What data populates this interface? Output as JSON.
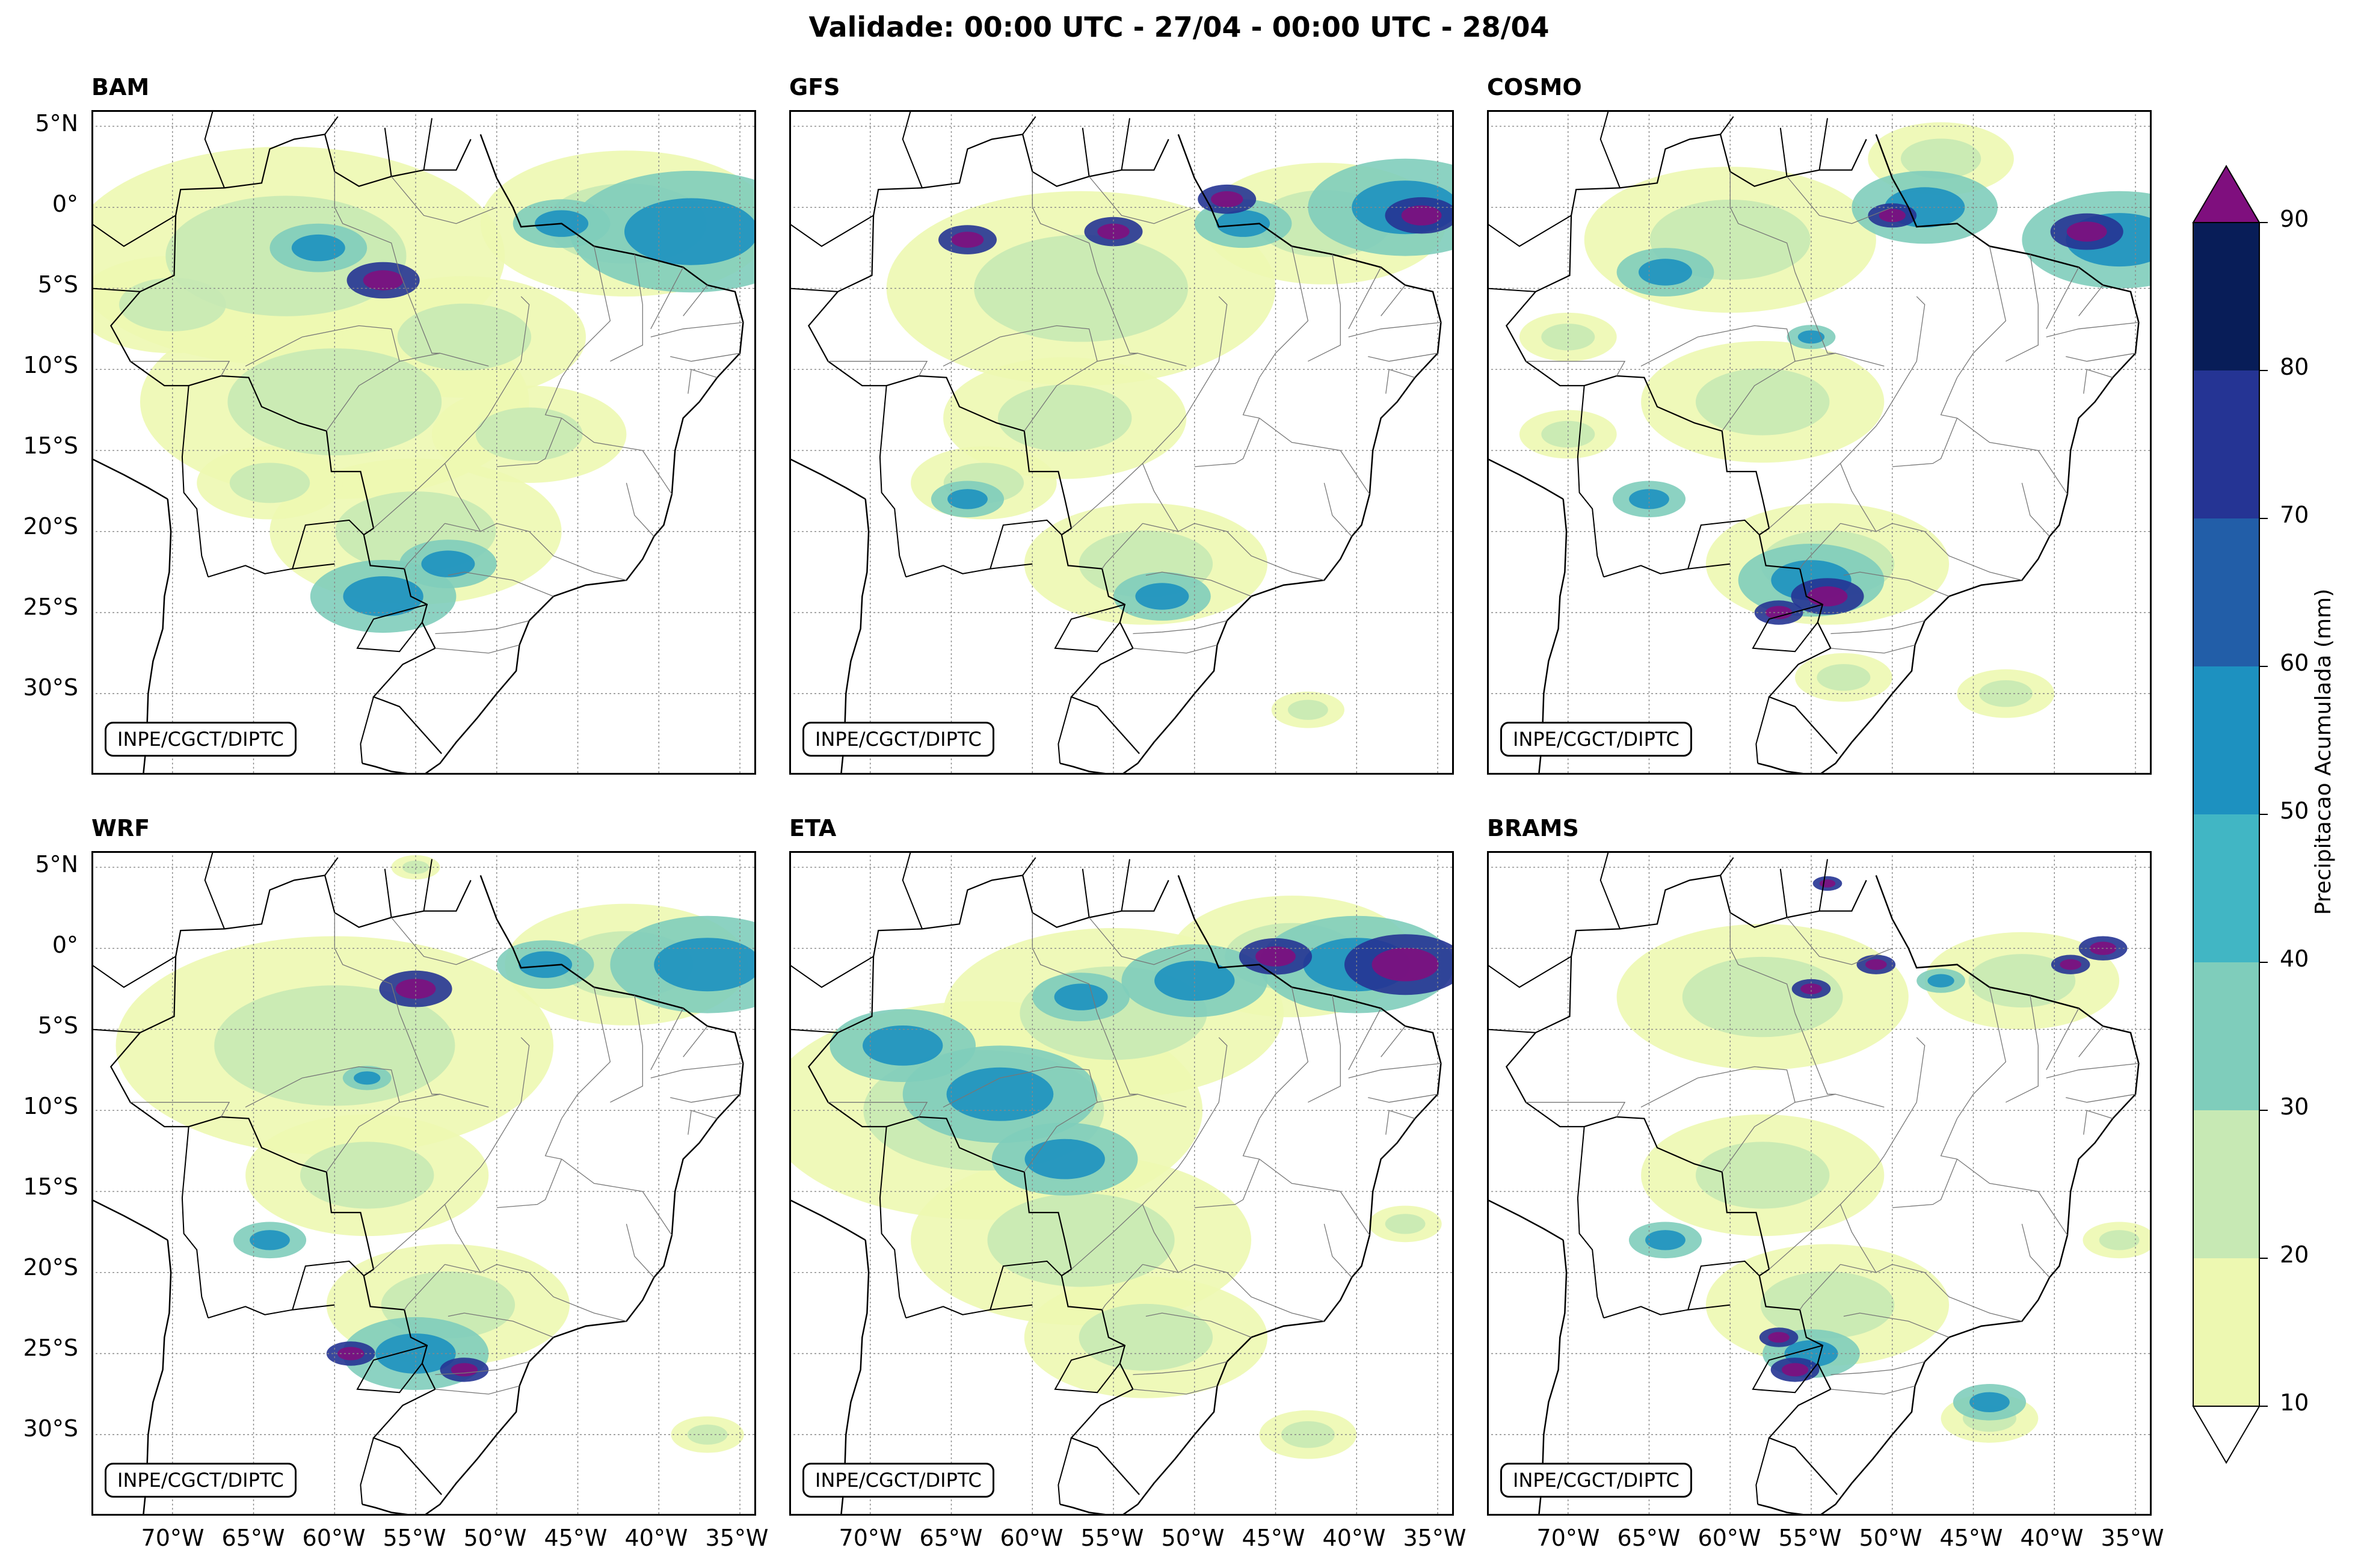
{
  "title": "Validade: 00:00 UTC - 27/04 - 00:00 UTC - 28/04",
  "credit": "INPE/CGCT/DIPTC",
  "panels": [
    {
      "model": "BAM",
      "heavy": [
        [
          -4.5,
          -57,
          1.5
        ]
      ],
      "moderate": [
        [
          -1.5,
          -38,
          5
        ],
        [
          -1,
          -46,
          2
        ],
        [
          -24,
          -57,
          3
        ],
        [
          -22,
          -53,
          2
        ],
        [
          -2.5,
          -61,
          2
        ]
      ],
      "light": [
        [
          -3,
          -63,
          9
        ],
        [
          -12,
          -60,
          8
        ],
        [
          -20,
          -55,
          6
        ],
        [
          -8,
          -52,
          5
        ],
        [
          -1,
          -42,
          6
        ],
        [
          -17,
          -64,
          3
        ],
        [
          -6,
          -70,
          4
        ],
        [
          -14,
          -48,
          4
        ]
      ]
    },
    {
      "model": "GFS",
      "heavy": [
        [
          -2,
          -64,
          1.2
        ],
        [
          -1.5,
          -55,
          1.2
        ],
        [
          -0.5,
          -36,
          1.5
        ],
        [
          0.5,
          -48,
          1.2
        ]
      ],
      "moderate": [
        [
          0,
          -37,
          4
        ],
        [
          -1,
          -47,
          2
        ],
        [
          -24,
          -52,
          2
        ],
        [
          -18,
          -64,
          1.5
        ]
      ],
      "light": [
        [
          -5,
          -57,
          8
        ],
        [
          -13,
          -58,
          5
        ],
        [
          -22,
          -53,
          5
        ],
        [
          -1,
          -42,
          5
        ],
        [
          -17,
          -63,
          3
        ],
        [
          -31,
          -43,
          1.5
        ]
      ]
    },
    {
      "model": "COSMO",
      "heavy": [
        [
          -24,
          -54,
          1.5
        ],
        [
          -1.5,
          -38,
          1.5
        ],
        [
          -0.5,
          -50,
          1
        ],
        [
          -25,
          -57,
          1
        ]
      ],
      "moderate": [
        [
          -4,
          -64,
          2
        ],
        [
          -8,
          -55,
          1
        ],
        [
          -23,
          -55,
          3
        ],
        [
          -2,
          -36,
          4
        ],
        [
          0,
          -48,
          3
        ],
        [
          -18,
          -65,
          1.5
        ]
      ],
      "light": [
        [
          -2,
          -60,
          6
        ],
        [
          -12,
          -58,
          5
        ],
        [
          -22,
          -54,
          5
        ],
        [
          3,
          -47,
          3
        ],
        [
          -30,
          -43,
          2
        ],
        [
          -29,
          -53,
          2
        ],
        [
          -14,
          -70,
          2
        ],
        [
          -8,
          -70,
          2
        ]
      ]
    },
    {
      "model": "WRF",
      "heavy": [
        [
          -2.5,
          -55,
          1.5
        ],
        [
          -25,
          -59,
          1
        ],
        [
          -26,
          -52,
          1
        ]
      ],
      "moderate": [
        [
          -25,
          -55,
          3
        ],
        [
          -1,
          -37,
          4
        ],
        [
          -1,
          -47,
          2
        ],
        [
          -18,
          -64,
          1.5
        ],
        [
          -8,
          -58,
          1
        ]
      ],
      "light": [
        [
          -6,
          -60,
          9
        ],
        [
          -14,
          -58,
          5
        ],
        [
          -22,
          -53,
          5
        ],
        [
          -1,
          -42,
          5
        ],
        [
          -30,
          -37,
          1.5
        ],
        [
          5,
          -55,
          1
        ]
      ]
    },
    {
      "model": "ETA",
      "heavy": [
        [
          -1,
          -37,
          2.5
        ],
        [
          -0.5,
          -45,
          1.5
        ]
      ],
      "moderate": [
        [
          -1,
          -40,
          4
        ],
        [
          -2,
          -50,
          3
        ],
        [
          -9,
          -62,
          4
        ],
        [
          -6,
          -68,
          3
        ],
        [
          -13,
          -58,
          3
        ],
        [
          -3,
          -57,
          2
        ]
      ],
      "light": [
        [
          -10,
          -63,
          9
        ],
        [
          -4,
          -55,
          7
        ],
        [
          -18,
          -57,
          7
        ],
        [
          -24,
          -53,
          5
        ],
        [
          -0.5,
          -44,
          5
        ],
        [
          -30,
          -43,
          2
        ],
        [
          -17,
          -37,
          1.5
        ]
      ]
    },
    {
      "model": "BRAMS",
      "heavy": [
        [
          0,
          -37,
          1
        ],
        [
          -1,
          -39,
          0.8
        ],
        [
          -1,
          -51,
          0.8
        ],
        [
          -2.5,
          -55,
          0.8
        ],
        [
          -26,
          -56,
          1
        ],
        [
          -24,
          -57,
          0.8
        ],
        [
          4,
          -54,
          0.6
        ]
      ],
      "moderate": [
        [
          -18,
          -64,
          1.5
        ],
        [
          -25,
          -55,
          2
        ],
        [
          -28,
          -44,
          1.5
        ],
        [
          -2,
          -47,
          1
        ]
      ],
      "light": [
        [
          -3,
          -58,
          6
        ],
        [
          -14,
          -58,
          5
        ],
        [
          -22,
          -54,
          5
        ],
        [
          -2,
          -42,
          4
        ],
        [
          -29,
          -44,
          2
        ],
        [
          -18,
          -36,
          1.5
        ]
      ]
    }
  ],
  "axes": {
    "lat_ticks": [
      "5°N",
      "0°",
      "5°S",
      "10°S",
      "15°S",
      "20°S",
      "25°S",
      "30°S"
    ],
    "lon_ticks": [
      "70°W",
      "65°W",
      "60°W",
      "55°W",
      "50°W",
      "45°W",
      "40°W",
      "35°W"
    ]
  },
  "colorbar": {
    "label": "Precipitacao Acumulada (mm)",
    "ticks": [
      "10",
      "20",
      "30",
      "40",
      "50",
      "60",
      "70",
      "80",
      "90"
    ],
    "colors": [
      "#edf8b1",
      "#c7e9b4",
      "#7fcdbb",
      "#41b6c4",
      "#1d91c0",
      "#225ea8",
      "#253494",
      "#081d58"
    ],
    "over_color": "#7f0f7e",
    "under_color": "#ffffff"
  }
}
